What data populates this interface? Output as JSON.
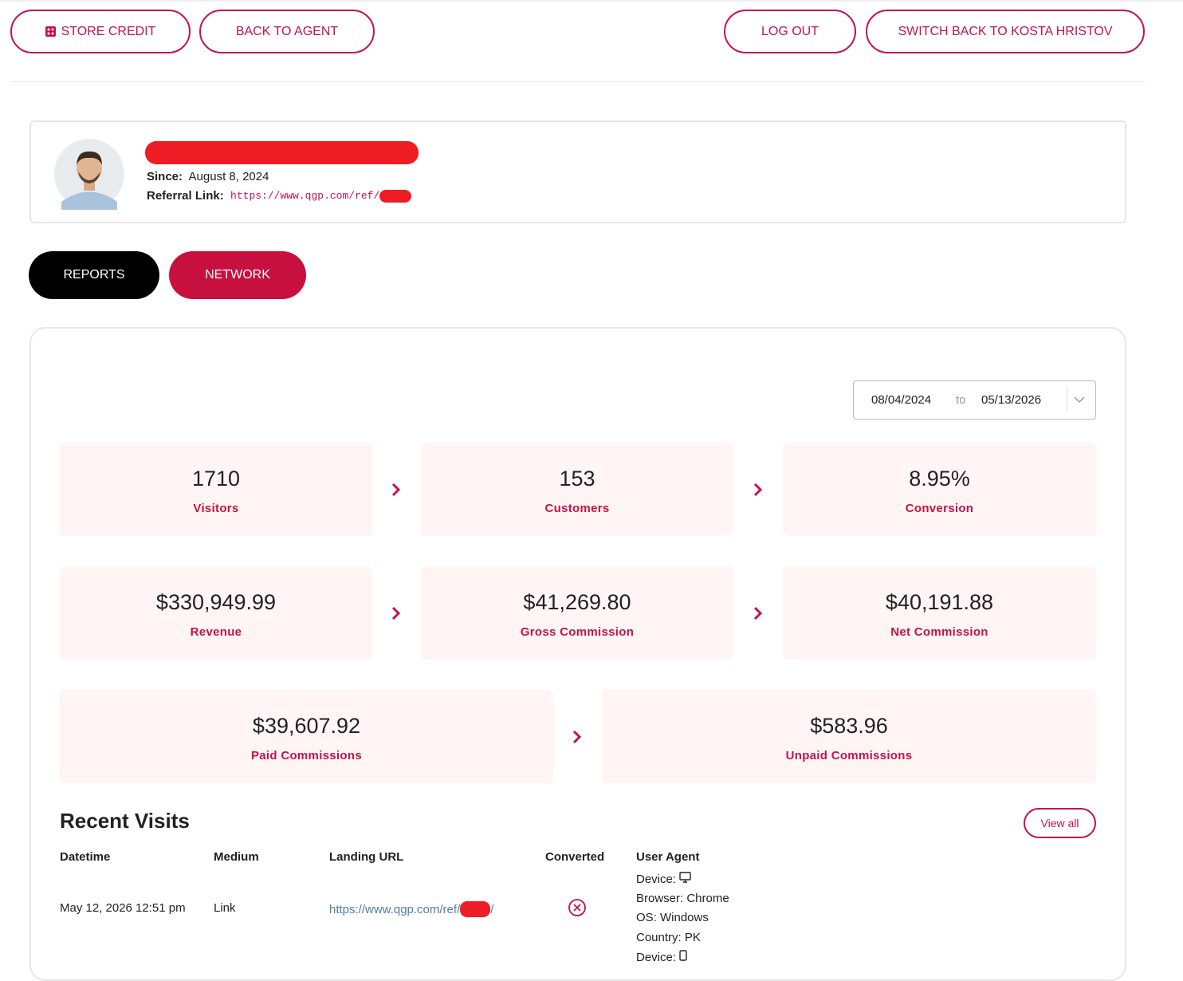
{
  "header": {
    "buttons": [
      "STORE CREDIT",
      "BACK TO AGENT",
      "LOG OUT",
      "SWITCH BACK TO KOSTA HRISTOV"
    ]
  },
  "profile": {
    "since_label": "Since:",
    "since": "August 8, 2024",
    "referral_label": "Referral Link:",
    "referral_link": "https://www.qgp.com/ref/"
  },
  "tabs": [
    "REPORTS",
    "NETWORK"
  ],
  "date_range": {
    "from": "08/04/2024",
    "separator": "to",
    "to": "05/13/2026"
  },
  "stats": [
    {
      "value": "1710",
      "label": "Visitors"
    },
    {
      "value": "153",
      "label": "Customers"
    },
    {
      "value": "8.95%",
      "label": "Conversion"
    },
    {
      "value": "$330,949.99",
      "label": "Revenue"
    },
    {
      "value": "$41,269.80",
      "label": "Gross Commission"
    },
    {
      "value": "$40,191.88",
      "label": "Net Commission"
    },
    {
      "value": "$39,607.92",
      "label": "Paid Commissions"
    },
    {
      "value": "$583.96",
      "label": "Unpaid Commissions"
    }
  ],
  "recent_visits": {
    "title": "Recent Visits",
    "view_all": "View all",
    "columns": [
      "Datetime",
      "Medium",
      "Landing URL",
      "Converted",
      "User Agent"
    ],
    "rows": [
      {
        "datetime": "May 12, 2026 12:51 pm",
        "medium": "Link",
        "landing_url": "https://www.qgp.com/ref/",
        "url_end": "/",
        "user_agent": [
          "Device:",
          "Browser: Chrome",
          "OS: Windows",
          "Country: PK",
          "Device:"
        ]
      }
    ]
  }
}
